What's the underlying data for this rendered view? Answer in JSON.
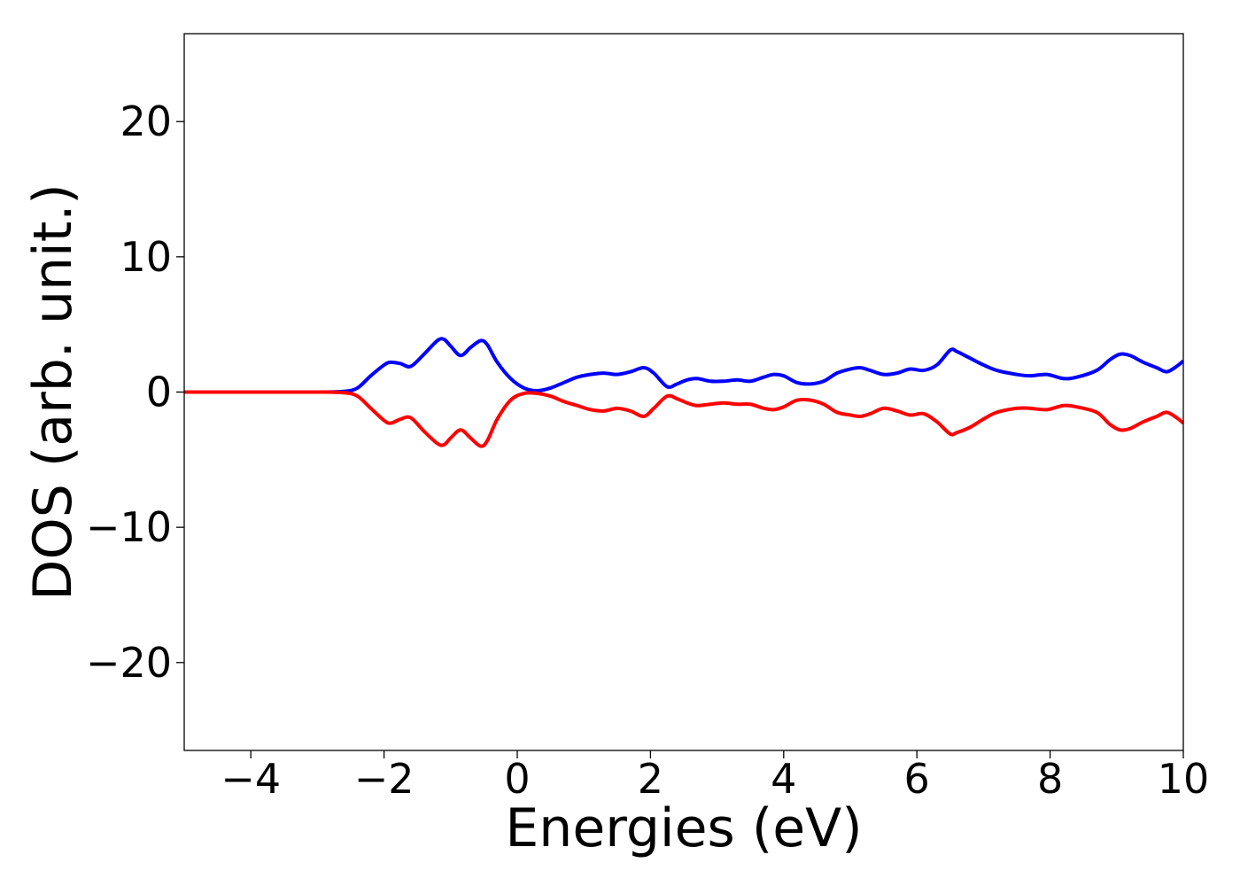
{
  "chart_data": {
    "type": "line",
    "title": "",
    "xlabel": "Energies (eV)",
    "ylabel": "DOS (arb. unit.)",
    "xlim": [
      -5,
      10
    ],
    "ylim": [
      -26.5,
      26.5
    ],
    "xticks": [
      -4,
      -2,
      0,
      2,
      4,
      6,
      8,
      10
    ],
    "xtick_labels": [
      "−4",
      "−2",
      "0",
      "2",
      "4",
      "6",
      "8",
      "10"
    ],
    "yticks": [
      -20,
      -10,
      0,
      10,
      20
    ],
    "ytick_labels": [
      "−20",
      "−10",
      "0",
      "10",
      "20"
    ],
    "grid": false,
    "legend": "none",
    "series": [
      {
        "color": "#0000ff",
        "x": [
          -5,
          -4,
          -3,
          -2.6,
          -2.4,
          -2.2,
          -2.0,
          -1.9,
          -1.75,
          -1.6,
          -1.4,
          -1.2,
          -1.1,
          -1.0,
          -0.85,
          -0.7,
          -0.55,
          -0.45,
          -0.3,
          -0.1,
          0.1,
          0.3,
          0.5,
          0.7,
          0.9,
          1.1,
          1.3,
          1.5,
          1.7,
          1.9,
          2.05,
          2.25,
          2.4,
          2.55,
          2.7,
          2.9,
          3.1,
          3.3,
          3.5,
          3.7,
          3.85,
          4.0,
          4.2,
          4.4,
          4.6,
          4.8,
          5.0,
          5.15,
          5.3,
          5.5,
          5.7,
          5.9,
          6.1,
          6.3,
          6.5,
          6.6,
          6.8,
          7.0,
          7.2,
          7.5,
          7.7,
          7.95,
          8.2,
          8.4,
          8.7,
          8.9,
          9.05,
          9.2,
          9.4,
          9.6,
          9.75,
          9.9,
          10.0
        ],
        "y": [
          0,
          0,
          0,
          0.05,
          0.3,
          1.2,
          2.0,
          2.2,
          2.1,
          1.9,
          2.8,
          3.8,
          3.9,
          3.4,
          2.7,
          3.3,
          3.8,
          3.5,
          2.2,
          1.0,
          0.3,
          0.1,
          0.3,
          0.7,
          1.1,
          1.3,
          1.4,
          1.3,
          1.5,
          1.8,
          1.4,
          0.4,
          0.6,
          0.9,
          1.0,
          0.8,
          0.8,
          0.9,
          0.8,
          1.1,
          1.3,
          1.2,
          0.7,
          0.6,
          0.8,
          1.4,
          1.7,
          1.8,
          1.6,
          1.3,
          1.4,
          1.7,
          1.6,
          2.0,
          3.1,
          3.0,
          2.5,
          2.0,
          1.6,
          1.3,
          1.2,
          1.3,
          1.0,
          1.1,
          1.6,
          2.4,
          2.8,
          2.7,
          2.2,
          1.8,
          1.5,
          1.9,
          2.3
        ]
      },
      {
        "color": "#ff0000",
        "x": [
          -5,
          -4,
          -3,
          -2.6,
          -2.4,
          -2.2,
          -2.0,
          -1.9,
          -1.75,
          -1.6,
          -1.4,
          -1.2,
          -1.1,
          -1.0,
          -0.85,
          -0.7,
          -0.55,
          -0.45,
          -0.3,
          -0.1,
          0.1,
          0.3,
          0.5,
          0.7,
          0.9,
          1.1,
          1.3,
          1.5,
          1.7,
          1.9,
          2.05,
          2.25,
          2.4,
          2.55,
          2.7,
          2.9,
          3.1,
          3.3,
          3.5,
          3.7,
          3.85,
          4.0,
          4.2,
          4.4,
          4.6,
          4.8,
          5.0,
          5.15,
          5.3,
          5.5,
          5.7,
          5.9,
          6.1,
          6.3,
          6.5,
          6.6,
          6.8,
          7.0,
          7.2,
          7.5,
          7.7,
          7.95,
          8.2,
          8.4,
          8.7,
          8.9,
          9.05,
          9.2,
          9.4,
          9.6,
          9.75,
          9.9,
          10.0
        ],
        "y": [
          0,
          0,
          0,
          -0.05,
          -0.3,
          -1.2,
          -2.1,
          -2.3,
          -2.0,
          -1.9,
          -2.9,
          -3.8,
          -3.9,
          -3.4,
          -2.8,
          -3.4,
          -4.0,
          -3.6,
          -2.0,
          -0.6,
          -0.1,
          -0.1,
          -0.3,
          -0.7,
          -1.0,
          -1.3,
          -1.4,
          -1.2,
          -1.4,
          -1.8,
          -1.2,
          -0.3,
          -0.5,
          -0.8,
          -1.0,
          -0.9,
          -0.8,
          -0.9,
          -0.9,
          -1.2,
          -1.3,
          -1.1,
          -0.6,
          -0.6,
          -0.9,
          -1.5,
          -1.7,
          -1.8,
          -1.6,
          -1.2,
          -1.4,
          -1.7,
          -1.6,
          -2.2,
          -3.1,
          -3.0,
          -2.6,
          -2.0,
          -1.5,
          -1.2,
          -1.2,
          -1.3,
          -1.0,
          -1.1,
          -1.5,
          -2.4,
          -2.8,
          -2.7,
          -2.2,
          -1.8,
          -1.5,
          -1.9,
          -2.3
        ]
      }
    ]
  }
}
